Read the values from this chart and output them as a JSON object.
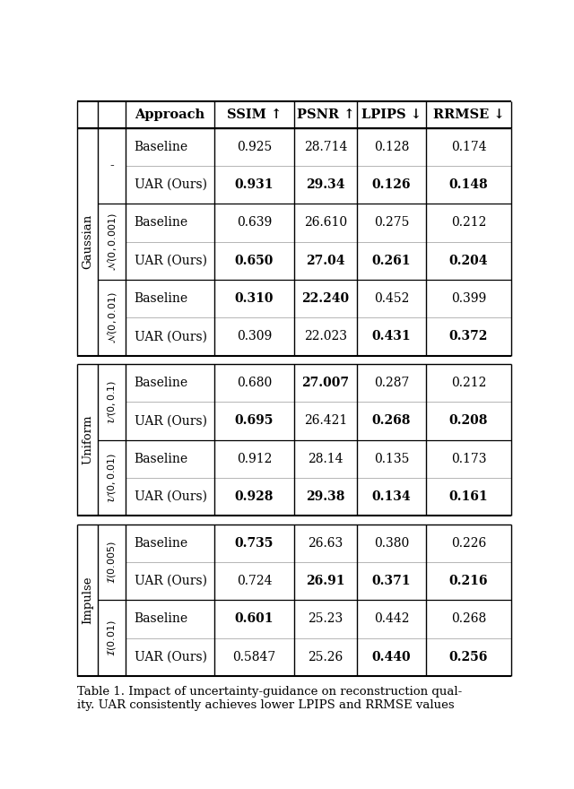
{
  "headers": [
    "Approach",
    "SSIM ↑",
    "PSNR ↑",
    "LPIPS ↓",
    "RRMSE ↓"
  ],
  "caption": "Table 1. Impact of uncertainty-guidance on reconstruction qual-\nity. UAR consistently achieves lower LPIPS and RRMSE values",
  "sections": [
    {
      "group_label": "Gaussian",
      "subsections": [
        {
          "sub_label": "-",
          "sub_label_math": false,
          "rows": [
            {
              "approach": "Baseline",
              "values": [
                "0.925",
                "28.714",
                "0.128",
                "0.174"
              ],
              "bold": [
                false,
                false,
                false,
                false
              ]
            },
            {
              "approach": "UAR (Ours)",
              "values": [
                "0.931",
                "29.34",
                "0.126",
                "0.148"
              ],
              "bold": [
                true,
                true,
                true,
                true
              ]
            }
          ]
        },
        {
          "sub_label": "$\\mathcal{N}(0, 0.001)$",
          "sub_label_math": true,
          "rows": [
            {
              "approach": "Baseline",
              "values": [
                "0.639",
                "26.610",
                "0.275",
                "0.212"
              ],
              "bold": [
                false,
                false,
                false,
                false
              ]
            },
            {
              "approach": "UAR (Ours)",
              "values": [
                "0.650",
                "27.04",
                "0.261",
                "0.204"
              ],
              "bold": [
                true,
                true,
                true,
                true
              ]
            }
          ]
        },
        {
          "sub_label": "$\\mathcal{N}(0, 0.01)$",
          "sub_label_math": true,
          "rows": [
            {
              "approach": "Baseline",
              "values": [
                "0.310",
                "22.240",
                "0.452",
                "0.399"
              ],
              "bold": [
                true,
                true,
                false,
                false
              ]
            },
            {
              "approach": "UAR (Ours)",
              "values": [
                "0.309",
                "22.023",
                "0.431",
                "0.372"
              ],
              "bold": [
                false,
                false,
                true,
                true
              ]
            }
          ]
        }
      ]
    },
    {
      "group_label": "Uniform",
      "subsections": [
        {
          "sub_label": "$\\mathcal{U}(0, 0.1)$",
          "sub_label_math": true,
          "rows": [
            {
              "approach": "Baseline",
              "values": [
                "0.680",
                "27.007",
                "0.287",
                "0.212"
              ],
              "bold": [
                false,
                true,
                false,
                false
              ]
            },
            {
              "approach": "UAR (Ours)",
              "values": [
                "0.695",
                "26.421",
                "0.268",
                "0.208"
              ],
              "bold": [
                true,
                false,
                true,
                true
              ]
            }
          ]
        },
        {
          "sub_label": "$\\mathcal{U}(0, 0.01)$",
          "sub_label_math": true,
          "rows": [
            {
              "approach": "Baseline",
              "values": [
                "0.912",
                "28.14",
                "0.135",
                "0.173"
              ],
              "bold": [
                false,
                false,
                false,
                false
              ]
            },
            {
              "approach": "UAR (Ours)",
              "values": [
                "0.928",
                "29.38",
                "0.134",
                "0.161"
              ],
              "bold": [
                true,
                true,
                true,
                true
              ]
            }
          ]
        }
      ]
    },
    {
      "group_label": "Impulse",
      "subsections": [
        {
          "sub_label": "$\\mathcal{I}(0.005)$",
          "sub_label_math": true,
          "rows": [
            {
              "approach": "Baseline",
              "values": [
                "0.735",
                "26.63",
                "0.380",
                "0.226"
              ],
              "bold": [
                true,
                false,
                false,
                false
              ]
            },
            {
              "approach": "UAR (Ours)",
              "values": [
                "0.724",
                "26.91",
                "0.371",
                "0.216"
              ],
              "bold": [
                false,
                true,
                true,
                true
              ]
            }
          ]
        },
        {
          "sub_label": "$\\mathcal{I}(0.01)$",
          "sub_label_math": true,
          "rows": [
            {
              "approach": "Baseline",
              "values": [
                "0.601",
                "25.23",
                "0.442",
                "0.268"
              ],
              "bold": [
                true,
                false,
                false,
                false
              ]
            },
            {
              "approach": "UAR (Ours)",
              "values": [
                "0.5847",
                "25.26",
                "0.440",
                "0.256"
              ],
              "bold": [
                false,
                false,
                true,
                true
              ]
            }
          ]
        }
      ]
    }
  ]
}
